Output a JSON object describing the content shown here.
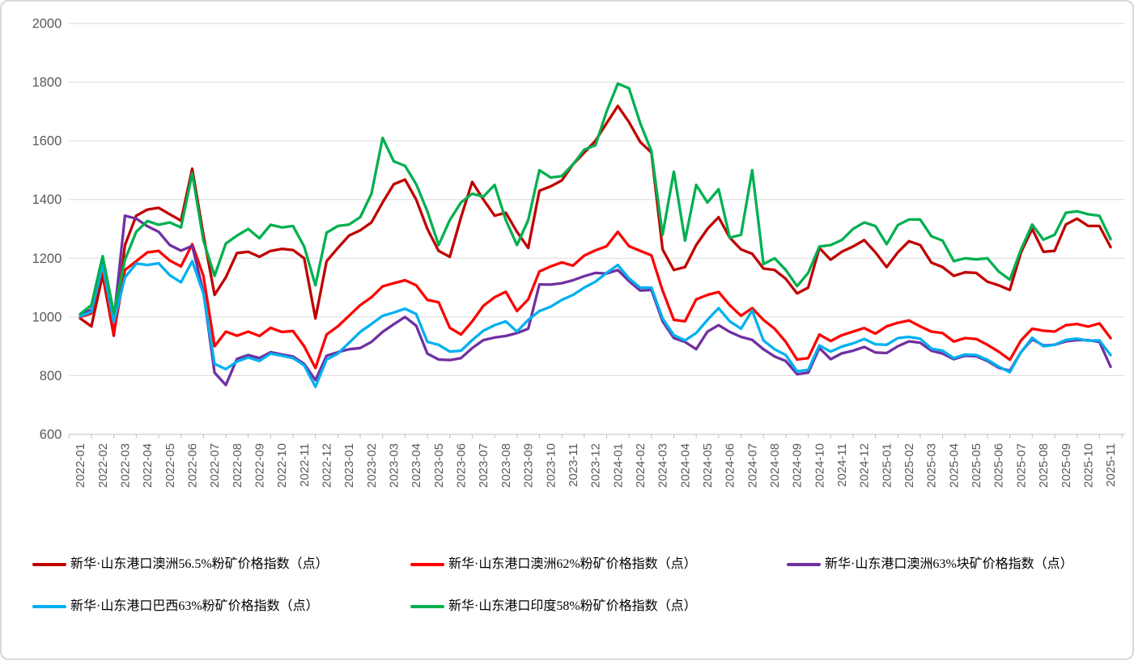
{
  "chart_data": {
    "type": "line",
    "title": "",
    "xlabel": "",
    "ylabel": "",
    "ylim": [
      600,
      2000
    ],
    "y_ticks": [
      600,
      800,
      1000,
      1200,
      1400,
      1600,
      1800,
      2000
    ],
    "grid": "horizontal",
    "legend_position": "bottom",
    "points_per_month": 2,
    "x_tick_labels": [
      "2022-01",
      "2022-02",
      "2022-03",
      "2022-04",
      "2022-05",
      "2022-06",
      "2022-07",
      "2022-08",
      "2022-09",
      "2022-10",
      "2022-11",
      "2022-12",
      "2023-01",
      "2023-02",
      "2023-03",
      "2023-04",
      "2023-05",
      "2023-06",
      "2023-07",
      "2023-08",
      "2023-09",
      "2023-10",
      "2023-11",
      "2023-12",
      "2024-01",
      "2024-02",
      "2024-03",
      "2024-04",
      "2024-05",
      "2024-06",
      "2024-07",
      "2024-08",
      "2024-09",
      "2024-10",
      "2024-11",
      "2024-12",
      "2025-01",
      "2025-02",
      "2025-03",
      "2025-04",
      "2025-05",
      "2025-06",
      "2025-07",
      "2025-08",
      "2025-09",
      "2025-10",
      "2025-11"
    ],
    "series": [
      {
        "name": "新华·山东港口澳洲56.5%粉矿价格指数（点）",
        "color": "#C00000",
        "values": [
          995,
          968,
          1143,
          936,
          1245,
          1345,
          1366,
          1372,
          1350,
          1328,
          1505,
          1280,
          1075,
          1135,
          1218,
          1222,
          1205,
          1225,
          1232,
          1228,
          1200,
          995,
          1190,
          1235,
          1277,
          1295,
          1322,
          1390,
          1452,
          1468,
          1400,
          1300,
          1225,
          1205,
          1340,
          1460,
          1400,
          1345,
          1355,
          1290,
          1235,
          1430,
          1445,
          1465,
          1520,
          1560,
          1600,
          1660,
          1719,
          1664,
          1596,
          1560,
          1230,
          1160,
          1170,
          1245,
          1300,
          1340,
          1270,
          1230,
          1215,
          1165,
          1160,
          1130,
          1080,
          1100,
          1235,
          1195,
          1222,
          1240,
          1262,
          1220,
          1170,
          1220,
          1258,
          1245,
          1185,
          1170,
          1140,
          1152,
          1150,
          1120,
          1108,
          1092,
          1220,
          1300,
          1222,
          1225,
          1315,
          1335,
          1310,
          1310,
          1238
        ]
      },
      {
        "name": "新华·山东港口澳洲62%粉矿价格指数（点）",
        "color": "#FF0000",
        "values": [
          1000,
          1012,
          1163,
          944,
          1160,
          1190,
          1220,
          1225,
          1192,
          1172,
          1248,
          1140,
          900,
          950,
          936,
          950,
          935,
          963,
          949,
          952,
          900,
          826,
          940,
          968,
          1004,
          1040,
          1067,
          1104,
          1115,
          1125,
          1108,
          1058,
          1050,
          963,
          940,
          985,
          1038,
          1067,
          1086,
          1020,
          1060,
          1155,
          1172,
          1186,
          1175,
          1209,
          1227,
          1241,
          1290,
          1241,
          1225,
          1210,
          1090,
          990,
          985,
          1060,
          1075,
          1085,
          1040,
          1004,
          1030,
          990,
          960,
          915,
          855,
          860,
          940,
          918,
          938,
          950,
          962,
          943,
          968,
          980,
          988,
          968,
          950,
          945,
          916,
          928,
          925,
          905,
          882,
          854,
          920,
          960,
          953,
          950,
          972,
          976,
          967,
          978,
          928
        ]
      },
      {
        "name": "新华·山东港口澳洲63%块矿价格指数（点）",
        "color": "#7030A0",
        "values": [
          1008,
          1025,
          1183,
          988,
          1345,
          1335,
          1309,
          1290,
          1245,
          1226,
          1242,
          1085,
          810,
          768,
          857,
          870,
          860,
          880,
          872,
          865,
          840,
          785,
          868,
          880,
          890,
          894,
          915,
          949,
          975,
          1000,
          970,
          875,
          855,
          853,
          860,
          894,
          921,
          930,
          935,
          945,
          960,
          1111,
          1110,
          1115,
          1125,
          1139,
          1150,
          1148,
          1160,
          1122,
          1090,
          1092,
          985,
          928,
          915,
          890,
          950,
          972,
          949,
          932,
          922,
          890,
          865,
          850,
          805,
          810,
          894,
          856,
          876,
          885,
          898,
          879,
          877,
          900,
          917,
          912,
          885,
          875,
          856,
          868,
          866,
          850,
          827,
          817,
          880,
          924,
          903,
          905,
          917,
          921,
          921,
          915,
          830
        ]
      },
      {
        "name": "新华·山东港口巴西63%粉矿价格指数（点）",
        "color": "#00B0F0",
        "values": [
          1002,
          1018,
          1176,
          983,
          1135,
          1182,
          1177,
          1183,
          1142,
          1118,
          1190,
          1080,
          840,
          822,
          848,
          862,
          850,
          875,
          868,
          860,
          835,
          762,
          855,
          875,
          912,
          949,
          976,
          1004,
          1015,
          1028,
          1010,
          915,
          905,
          882,
          885,
          921,
          953,
          972,
          985,
          950,
          990,
          1020,
          1035,
          1058,
          1075,
          1100,
          1120,
          1150,
          1177,
          1131,
          1100,
          1100,
          995,
          938,
          920,
          945,
          990,
          1030,
          985,
          960,
          1022,
          920,
          890,
          870,
          815,
          820,
          903,
          882,
          899,
          910,
          925,
          907,
          905,
          928,
          932,
          926,
          892,
          885,
          860,
          872,
          870,
          854,
          831,
          812,
          880,
          929,
          900,
          905,
          922,
          926,
          919,
          920,
          870
        ]
      },
      {
        "name": "新华·山东港口印度58%粉矿价格指数（点）",
        "color": "#00B050",
        "values": [
          1010,
          1040,
          1207,
          1013,
          1195,
          1290,
          1327,
          1314,
          1322,
          1305,
          1490,
          1260,
          1140,
          1250,
          1277,
          1300,
          1268,
          1314,
          1305,
          1310,
          1240,
          1108,
          1287,
          1310,
          1315,
          1340,
          1420,
          1610,
          1530,
          1515,
          1452,
          1360,
          1245,
          1330,
          1390,
          1420,
          1410,
          1450,
          1330,
          1245,
          1330,
          1500,
          1475,
          1480,
          1520,
          1570,
          1585,
          1700,
          1795,
          1779,
          1660,
          1565,
          1280,
          1495,
          1260,
          1450,
          1390,
          1435,
          1270,
          1280,
          1500,
          1180,
          1200,
          1160,
          1105,
          1150,
          1240,
          1245,
          1262,
          1300,
          1322,
          1310,
          1248,
          1313,
          1332,
          1332,
          1275,
          1260,
          1190,
          1200,
          1196,
          1200,
          1155,
          1127,
          1230,
          1315,
          1263,
          1280,
          1355,
          1360,
          1350,
          1345,
          1265
        ]
      }
    ],
    "style": {
      "background": "#FFFFFF",
      "frame_border": "#D9D9D9",
      "gridline_color": "#D9D9D9",
      "axis_color": "#BFBFBF",
      "tick_label_color": "#595959",
      "legend_text_color": "#000000"
    }
  }
}
